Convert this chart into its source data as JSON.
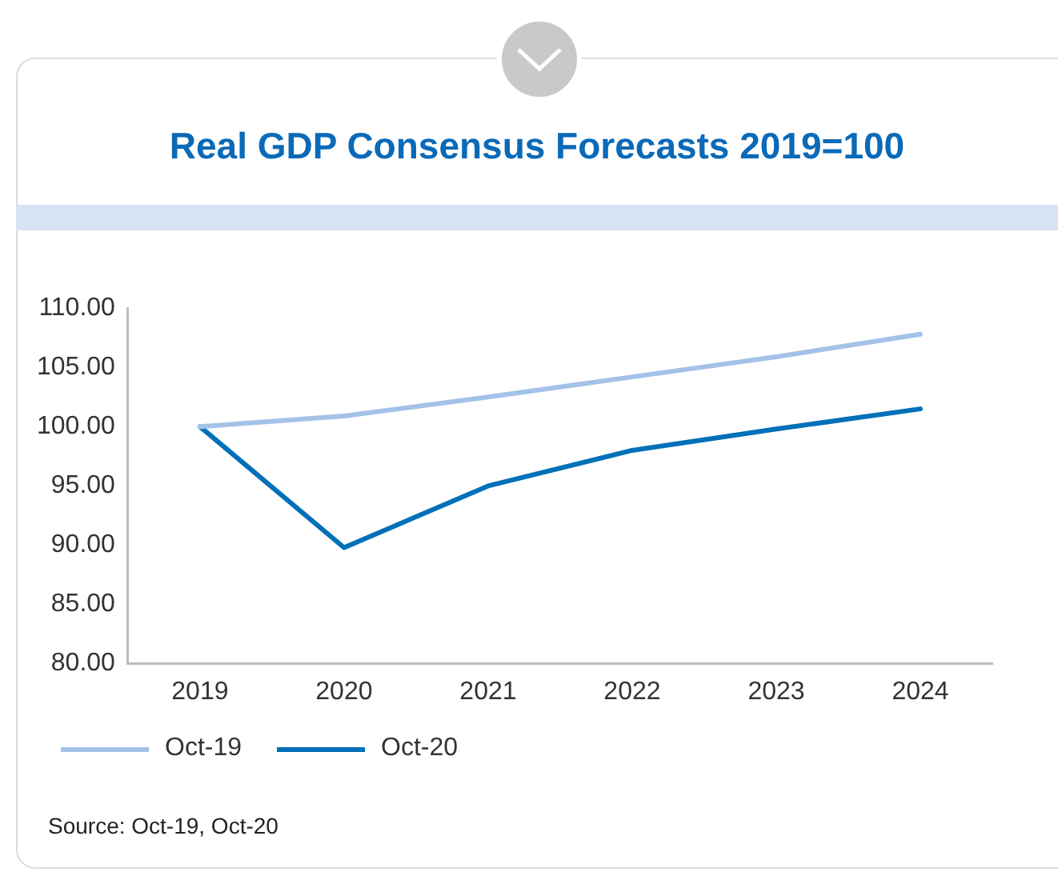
{
  "chart_data": {
    "type": "line",
    "title": "Real GDP Consensus Forecasts 2019=100",
    "categories": [
      "2019",
      "2020",
      "2021",
      "2022",
      "2023",
      "2024"
    ],
    "series": [
      {
        "name": "Oct-19",
        "color": "#a4c2e8",
        "values": [
          100,
          100.9,
          102.5,
          104.2,
          105.9,
          107.8
        ]
      },
      {
        "name": "Oct-20",
        "color": "#0070b8",
        "values": [
          100,
          89.8,
          95,
          98,
          99.8,
          101.5
        ]
      }
    ],
    "ylim": [
      80,
      110
    ],
    "yticks": [
      {
        "value": 80,
        "label": "80.00"
      },
      {
        "value": 85,
        "label": "85.00"
      },
      {
        "value": 90,
        "label": "90.00"
      },
      {
        "value": 95,
        "label": "95.00"
      },
      {
        "value": 100,
        "label": "100.00"
      },
      {
        "value": 105,
        "label": "105.00"
      },
      {
        "value": 110,
        "label": "110.00"
      }
    ],
    "grid": false,
    "legend": "bottom left",
    "marker": "none",
    "line_style": "solid",
    "annotations": [
      "Source: Oct-19, Oct-20"
    ]
  }
}
